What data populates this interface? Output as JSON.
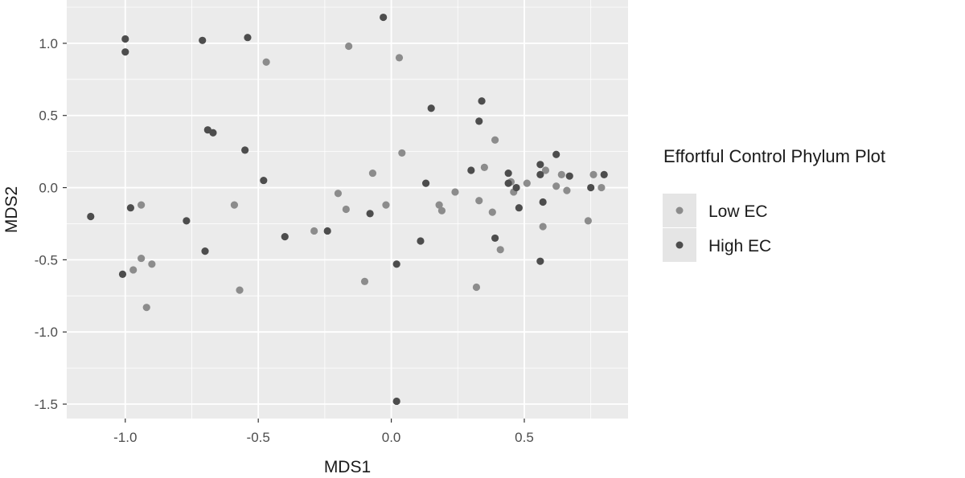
{
  "chart_data": {
    "type": "scatter",
    "xlabel": "MDS1",
    "ylabel": "MDS2",
    "xlim": [
      -1.22,
      0.89
    ],
    "ylim": [
      -1.6,
      1.3
    ],
    "x_ticks": [
      -1.0,
      -0.5,
      0.0,
      0.5
    ],
    "x_tick_labels": [
      "-1.0",
      "-0.5",
      "0.0",
      "0.5"
    ],
    "y_ticks": [
      -1.5,
      -1.0,
      -0.5,
      0.0,
      0.5,
      1.0
    ],
    "y_tick_labels": [
      "-1.5",
      "-1.0",
      "-0.5",
      "0.0",
      "0.5",
      "1.0"
    ],
    "grid": true,
    "background": "#ebebeb",
    "grid_color": "#ffffff",
    "legend": {
      "title": "Effortful Control Phylum Plot",
      "position": "right",
      "box_color": "#e5e5e5"
    },
    "series": [
      {
        "name": "Low EC",
        "color": "#8c8c8c",
        "points": [
          [
            -0.47,
            0.87
          ],
          [
            -0.16,
            0.98
          ],
          [
            0.03,
            0.9
          ],
          [
            0.04,
            0.24
          ],
          [
            0.39,
            0.33
          ],
          [
            0.35,
            0.14
          ],
          [
            -0.07,
            0.1
          ],
          [
            -0.2,
            -0.04
          ],
          [
            -0.17,
            -0.15
          ],
          [
            -0.02,
            -0.12
          ],
          [
            0.18,
            -0.12
          ],
          [
            0.19,
            -0.16
          ],
          [
            0.24,
            -0.03
          ],
          [
            0.33,
            -0.09
          ],
          [
            0.38,
            -0.17
          ],
          [
            0.45,
            0.04
          ],
          [
            0.46,
            -0.03
          ],
          [
            0.51,
            0.03
          ],
          [
            0.58,
            0.12
          ],
          [
            0.57,
            -0.27
          ],
          [
            0.62,
            0.01
          ],
          [
            0.64,
            0.09
          ],
          [
            0.66,
            -0.02
          ],
          [
            0.74,
            -0.23
          ],
          [
            0.76,
            0.09
          ],
          [
            0.79,
            0.0
          ],
          [
            0.41,
            -0.43
          ],
          [
            0.32,
            -0.69
          ],
          [
            -0.1,
            -0.65
          ],
          [
            -0.29,
            -0.3
          ],
          [
            -0.57,
            -0.71
          ],
          [
            -0.59,
            -0.12
          ],
          [
            -0.94,
            -0.12
          ],
          [
            -0.94,
            -0.49
          ],
          [
            -0.97,
            -0.57
          ],
          [
            -0.9,
            -0.53
          ],
          [
            -0.92,
            -0.83
          ]
        ]
      },
      {
        "name": "High EC",
        "color": "#4d4d4d",
        "points": [
          [
            -1.0,
            1.03
          ],
          [
            -1.0,
            0.94
          ],
          [
            -0.71,
            1.02
          ],
          [
            -0.54,
            1.04
          ],
          [
            -0.03,
            1.18
          ],
          [
            -0.69,
            0.4
          ],
          [
            -0.67,
            0.38
          ],
          [
            -0.55,
            0.26
          ],
          [
            -0.48,
            0.05
          ],
          [
            0.15,
            0.55
          ],
          [
            0.34,
            0.6
          ],
          [
            0.33,
            0.46
          ],
          [
            0.3,
            0.12
          ],
          [
            0.13,
            0.03
          ],
          [
            0.44,
            0.1
          ],
          [
            0.44,
            0.03
          ],
          [
            0.47,
            0.0
          ],
          [
            0.56,
            0.16
          ],
          [
            0.56,
            0.09
          ],
          [
            0.62,
            0.23
          ],
          [
            0.67,
            0.08
          ],
          [
            0.57,
            -0.1
          ],
          [
            0.48,
            -0.14
          ],
          [
            0.75,
            0.0
          ],
          [
            0.8,
            0.09
          ],
          [
            0.39,
            -0.35
          ],
          [
            0.56,
            -0.51
          ],
          [
            0.11,
            -0.37
          ],
          [
            0.02,
            -0.53
          ],
          [
            0.02,
            -1.48
          ],
          [
            -0.08,
            -0.18
          ],
          [
            -0.24,
            -0.3
          ],
          [
            -0.4,
            -0.34
          ],
          [
            -0.77,
            -0.23
          ],
          [
            -0.7,
            -0.44
          ],
          [
            -0.98,
            -0.14
          ],
          [
            -1.01,
            -0.6
          ],
          [
            -1.13,
            -0.2
          ]
        ]
      }
    ]
  }
}
